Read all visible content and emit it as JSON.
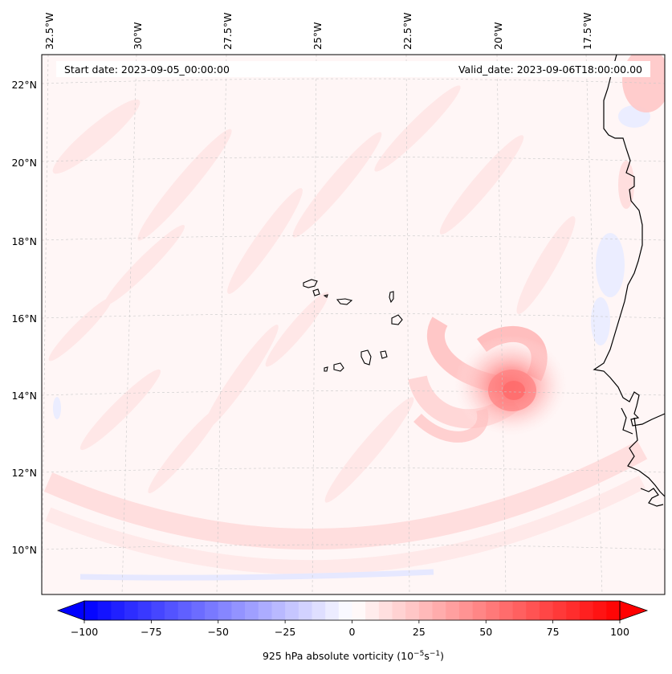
{
  "map": {
    "start_date_text": "Start date: 2023-09-05_00:00:00",
    "valid_date_text": "Valid_date: 2023-09-06T18:00:00.00",
    "lon_labels": [
      "32.5°W",
      "30°W",
      "27.5°W",
      "25°W",
      "22.5°W",
      "20°W",
      "17.5°W"
    ],
    "lat_labels": [
      "22°N",
      "20°N",
      "18°N",
      "16°N",
      "14°N",
      "12°N",
      "10°N"
    ],
    "field": "925 hPa absolute vorticity",
    "cyclone_center": {
      "lon": -19.4,
      "lat": 14.2
    }
  },
  "colorbar": {
    "ticks": [
      "−100",
      "−75",
      "−50",
      "−25",
      "0",
      "25",
      "50",
      "75",
      "100"
    ],
    "label_prefix": "925 hPa absolute vorticity (10",
    "label_exp1": "−5",
    "label_mid": "s",
    "label_exp2": "−1",
    "label_suffix": ")",
    "min": -100,
    "max": 100,
    "negative_color": "#0000ff",
    "zero_color": "#ffffff",
    "positive_color": "#ff0000"
  }
}
